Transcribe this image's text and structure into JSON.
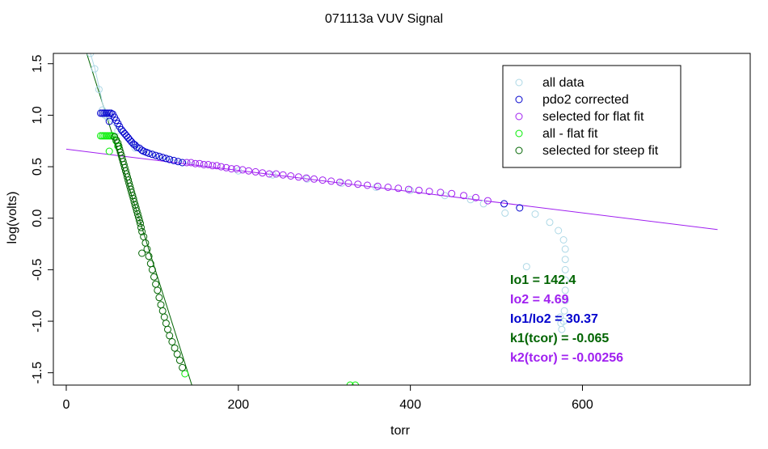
{
  "chart_data": {
    "type": "scatter",
    "title": "071113a   VUV Signal",
    "xlabel": "torr",
    "ylabel": "log(volts)",
    "xlim": [
      -15,
      795
    ],
    "ylim": [
      -1.62,
      1.6
    ],
    "x_ticks": [
      0,
      200,
      400,
      600
    ],
    "y_ticks": [
      -1.5,
      -1.0,
      -0.5,
      0.0,
      0.5,
      1.0,
      1.5
    ],
    "x_tick_labels": [
      "0",
      "200",
      "400",
      "600"
    ],
    "y_tick_labels": [
      "-1.5",
      "-1.0",
      "-0.5",
      "0.0",
      "0.5",
      "1.0",
      "1.5"
    ],
    "grid": false,
    "legend_position": "top-right",
    "colors": {
      "all_data": "#add8e6",
      "pdo2_corrected": "#0000cd",
      "selected_flat": "#a020f0",
      "all_minus_flat": "#00ee00",
      "selected_steep": "#006400",
      "flat_fit_line": "#a020f0",
      "steep_fit_line": "#006400"
    },
    "series": [
      {
        "name": "all data",
        "color": "#add8e6",
        "points": [
          [
            28,
            1.6
          ],
          [
            33,
            1.45
          ],
          [
            38,
            1.25
          ],
          [
            42,
            1.05
          ],
          [
            45,
            1.0
          ],
          [
            48,
            0.98
          ],
          [
            60,
            0.85
          ],
          [
            80,
            0.68
          ],
          [
            100,
            0.62
          ],
          [
            120,
            0.57
          ],
          [
            140,
            0.54
          ],
          [
            160,
            0.52
          ],
          [
            200,
            0.46
          ],
          [
            240,
            0.42
          ],
          [
            280,
            0.38
          ],
          [
            320,
            0.34
          ],
          [
            360,
            0.3
          ],
          [
            400,
            0.27
          ],
          [
            440,
            0.22
          ],
          [
            470,
            0.18
          ],
          [
            485,
            0.14
          ],
          [
            510,
            0.05
          ],
          [
            535,
            -0.47
          ],
          [
            545,
            0.04
          ],
          [
            562,
            -0.04
          ],
          [
            572,
            -0.12
          ],
          [
            578,
            -0.21
          ],
          [
            580,
            -0.3
          ],
          [
            580,
            -0.4
          ],
          [
            580,
            -0.5
          ],
          [
            580,
            -0.6
          ],
          [
            580,
            -0.7
          ],
          [
            580,
            -0.8
          ],
          [
            579,
            -0.9
          ],
          [
            578,
            -1.0
          ],
          [
            576,
            -1.08
          ],
          [
            575,
            -1.02
          ],
          [
            574,
            -0.96
          ]
        ]
      },
      {
        "name": "pdo2 corrected",
        "color": "#0000cd",
        "points": [
          [
            40,
            1.02
          ],
          [
            42,
            1.02
          ],
          [
            44,
            1.02
          ],
          [
            46,
            1.02
          ],
          [
            48,
            1.02
          ],
          [
            50,
            1.02
          ],
          [
            52,
            1.02
          ],
          [
            54,
            1.01
          ],
          [
            50,
            0.94
          ],
          [
            56,
            0.98
          ],
          [
            58,
            0.95
          ],
          [
            60,
            0.92
          ],
          [
            62,
            0.89
          ],
          [
            64,
            0.86
          ],
          [
            66,
            0.84
          ],
          [
            68,
            0.82
          ],
          [
            70,
            0.8
          ],
          [
            72,
            0.78
          ],
          [
            74,
            0.76
          ],
          [
            76,
            0.74
          ],
          [
            78,
            0.72
          ],
          [
            80,
            0.71
          ],
          [
            82,
            0.69
          ],
          [
            85,
            0.68
          ],
          [
            88,
            0.66
          ],
          [
            90,
            0.65
          ],
          [
            93,
            0.64
          ],
          [
            96,
            0.63
          ],
          [
            100,
            0.62
          ],
          [
            104,
            0.61
          ],
          [
            108,
            0.6
          ],
          [
            112,
            0.59
          ],
          [
            116,
            0.58
          ],
          [
            120,
            0.57
          ],
          [
            125,
            0.56
          ],
          [
            130,
            0.55
          ],
          [
            135,
            0.54
          ],
          [
            509,
            0.14
          ],
          [
            527,
            0.1
          ]
        ]
      },
      {
        "name": "selected for flat fit",
        "color": "#a020f0",
        "points": [
          [
            140,
            0.54
          ],
          [
            145,
            0.54
          ],
          [
            150,
            0.53
          ],
          [
            155,
            0.53
          ],
          [
            160,
            0.52
          ],
          [
            165,
            0.52
          ],
          [
            170,
            0.51
          ],
          [
            175,
            0.51
          ],
          [
            180,
            0.5
          ],
          [
            186,
            0.49
          ],
          [
            192,
            0.48
          ],
          [
            198,
            0.48
          ],
          [
            205,
            0.47
          ],
          [
            212,
            0.46
          ],
          [
            220,
            0.45
          ],
          [
            228,
            0.44
          ],
          [
            236,
            0.43
          ],
          [
            244,
            0.43
          ],
          [
            252,
            0.42
          ],
          [
            261,
            0.41
          ],
          [
            270,
            0.4
          ],
          [
            279,
            0.39
          ],
          [
            288,
            0.38
          ],
          [
            298,
            0.37
          ],
          [
            308,
            0.36
          ],
          [
            318,
            0.35
          ],
          [
            328,
            0.34
          ],
          [
            339,
            0.33
          ],
          [
            350,
            0.32
          ],
          [
            362,
            0.31
          ],
          [
            374,
            0.3
          ],
          [
            386,
            0.29
          ],
          [
            398,
            0.28
          ],
          [
            410,
            0.27
          ],
          [
            422,
            0.26
          ],
          [
            435,
            0.25
          ],
          [
            448,
            0.24
          ],
          [
            462,
            0.22
          ],
          [
            476,
            0.2
          ],
          [
            490,
            0.17
          ]
        ]
      },
      {
        "name": "all - flat fit",
        "color": "#00ee00",
        "points": [
          [
            40,
            0.8
          ],
          [
            42,
            0.8
          ],
          [
            44,
            0.8
          ],
          [
            46,
            0.8
          ],
          [
            48,
            0.8
          ],
          [
            50,
            0.8
          ],
          [
            52,
            0.8
          ],
          [
            54,
            0.8
          ],
          [
            56,
            0.79
          ],
          [
            50,
            0.65
          ],
          [
            58,
            0.75
          ],
          [
            60,
            0.7
          ],
          [
            138,
            -1.51
          ],
          [
            330,
            -1.62
          ],
          [
            336,
            -1.62
          ]
        ]
      },
      {
        "name": "selected for steep fit",
        "color": "#006400",
        "points": [
          [
            56,
            0.79
          ],
          [
            58,
            0.76
          ],
          [
            60,
            0.73
          ],
          [
            61,
            0.7
          ],
          [
            62,
            0.67
          ],
          [
            63,
            0.64
          ],
          [
            64,
            0.61
          ],
          [
            65,
            0.58
          ],
          [
            66,
            0.55
          ],
          [
            67,
            0.52
          ],
          [
            68,
            0.49
          ],
          [
            69,
            0.46
          ],
          [
            70,
            0.43
          ],
          [
            71,
            0.4
          ],
          [
            72,
            0.37
          ],
          [
            73,
            0.34
          ],
          [
            74,
            0.31
          ],
          [
            75,
            0.28
          ],
          [
            76,
            0.25
          ],
          [
            77,
            0.22
          ],
          [
            78,
            0.19
          ],
          [
            79,
            0.16
          ],
          [
            80,
            0.13
          ],
          [
            81,
            0.1
          ],
          [
            82,
            0.07
          ],
          [
            83,
            0.04
          ],
          [
            84,
            0.01
          ],
          [
            85,
            -0.02
          ],
          [
            86,
            -0.05
          ],
          [
            87,
            -0.09
          ],
          [
            88,
            -0.13
          ],
          [
            90,
            -0.18
          ],
          [
            88,
            -0.34
          ],
          [
            92,
            -0.24
          ],
          [
            94,
            -0.3
          ],
          [
            96,
            -0.37
          ],
          [
            98,
            -0.44
          ],
          [
            100,
            -0.5
          ],
          [
            102,
            -0.57
          ],
          [
            104,
            -0.64
          ],
          [
            106,
            -0.7
          ],
          [
            108,
            -0.77
          ],
          [
            110,
            -0.84
          ],
          [
            112,
            -0.9
          ],
          [
            114,
            -0.96
          ],
          [
            116,
            -1.02
          ],
          [
            118,
            -1.08
          ],
          [
            120,
            -1.14
          ],
          [
            123,
            -1.2
          ],
          [
            126,
            -1.26
          ],
          [
            129,
            -1.32
          ],
          [
            132,
            -1.38
          ],
          [
            135,
            -1.45
          ]
        ]
      }
    ],
    "fit_lines": [
      {
        "name": "flat fit",
        "color": "#a020f0",
        "x": [
          0,
          757
        ],
        "y": [
          0.67,
          -0.11
        ]
      },
      {
        "name": "steep fit",
        "color": "#006400",
        "x": [
          20,
          146
        ],
        "y": [
          1.7,
          -1.62
        ]
      },
      {
        "name": "all data trace",
        "color": "#add8e6",
        "x": [
          28,
          33,
          38,
          42,
          46,
          50,
          56,
          62,
          68,
          76,
          85,
          95,
          105,
          120,
          135,
          150
        ],
        "y": [
          1.6,
          1.46,
          1.28,
          1.12,
          1.0,
          0.95,
          0.9,
          0.84,
          0.78,
          0.72,
          0.67,
          0.63,
          0.6,
          0.57,
          0.55,
          0.53
        ]
      }
    ],
    "legend": [
      {
        "label": "all data",
        "color": "#add8e6"
      },
      {
        "label": "pdo2 corrected",
        "color": "#0000cd"
      },
      {
        "label": "selected for flat fit",
        "color": "#a020f0"
      },
      {
        "label": "all - flat fit",
        "color": "#00ee00"
      },
      {
        "label": "selected for steep fit",
        "color": "#006400"
      }
    ],
    "annotations": [
      {
        "text": "Io1 =  142.4",
        "color": "#006400"
      },
      {
        "text": "Io2 =  4.69",
        "color": "#a020f0"
      },
      {
        "text": "Io1/Io2 =  30.37",
        "color": "#0000cd"
      },
      {
        "text": "k1(tcor) =  -0.065",
        "color": "#006400"
      },
      {
        "text": "k2(tcor) =  -0.00256",
        "color": "#a020f0"
      }
    ]
  }
}
